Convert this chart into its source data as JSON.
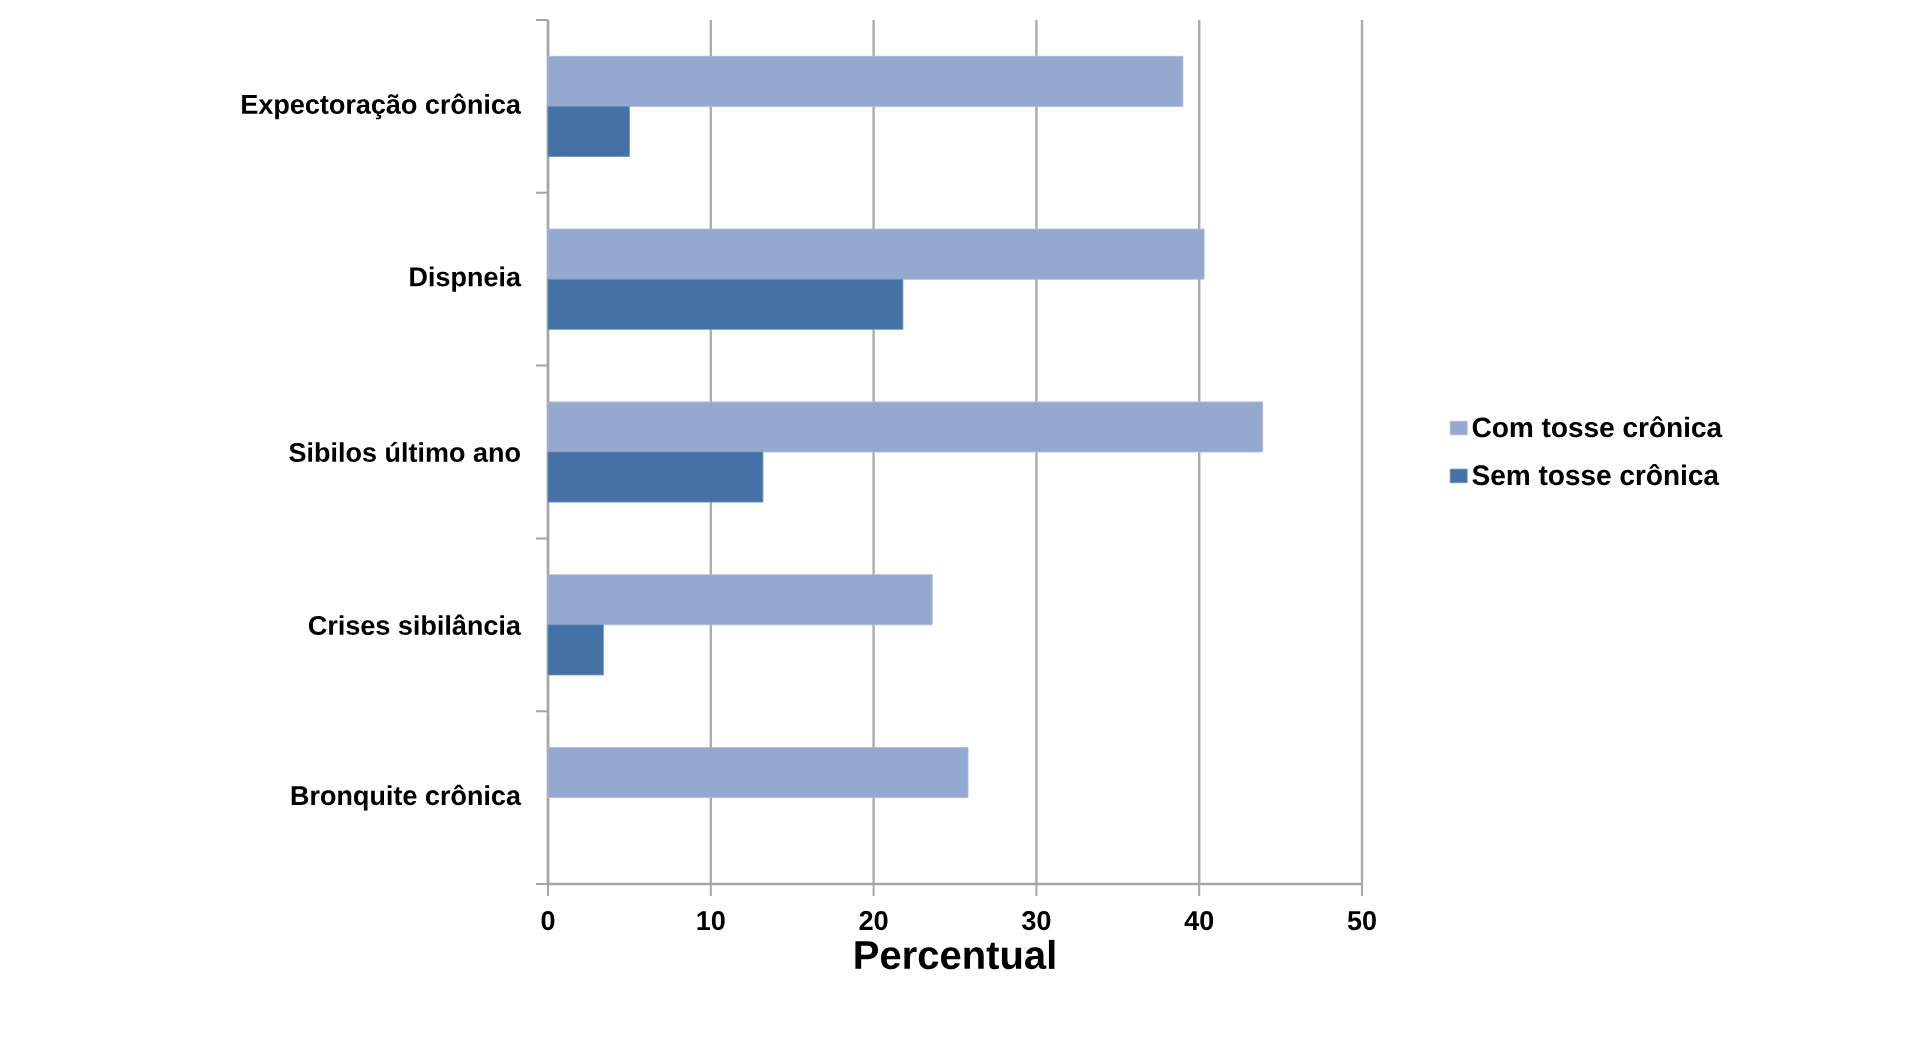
{
  "chart_data": {
    "type": "bar",
    "orientation": "horizontal",
    "xlabel": "Percentual",
    "categories": [
      "Expectoração crônica",
      "Dispneia",
      "Sibilos último ano",
      "Crises sibilância",
      "Bronquite crônica"
    ],
    "series": [
      {
        "name": "Com tosse crônica",
        "color": "#95a9d0",
        "values": [
          39.0,
          40.3,
          43.9,
          23.6,
          25.8
        ]
      },
      {
        "name": "Sem tosse crônica",
        "color": "#4472a6",
        "values": [
          5.0,
          21.8,
          13.2,
          3.4,
          null
        ]
      }
    ],
    "xlim": [
      0,
      50
    ],
    "xticks": [
      0,
      10,
      20,
      30,
      40,
      50
    ],
    "grid": "x",
    "legend": "right"
  }
}
